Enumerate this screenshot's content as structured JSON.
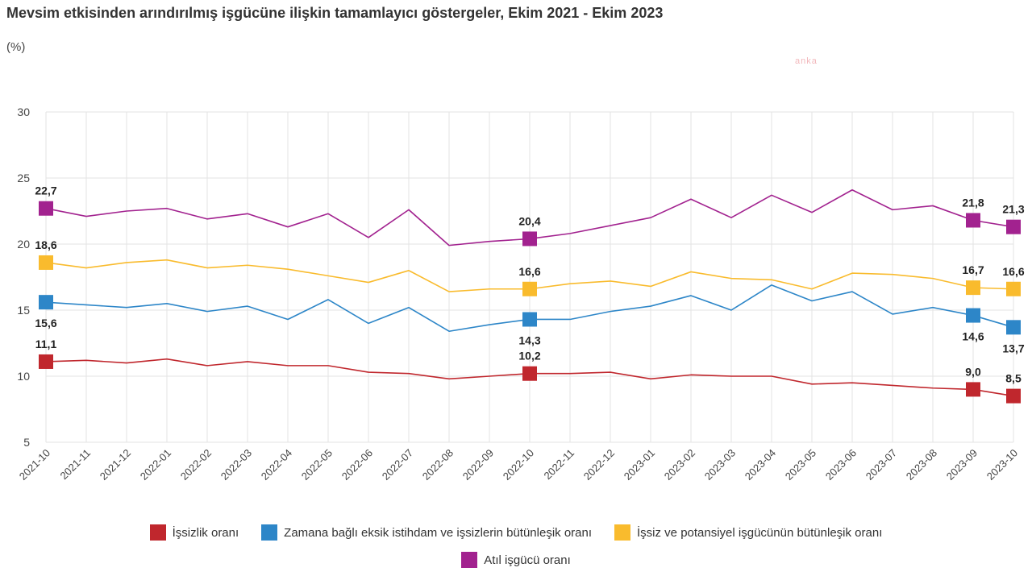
{
  "title": "Mevsim etkisinden arındırılmış işgücüne ilişkin tamamlayıcı göstergeler, Ekim 2021 - Ekim 2023",
  "unit": "(%)",
  "watermark": "anka",
  "chart_data": {
    "type": "line",
    "categories": [
      "2021-10",
      "2021-11",
      "2021-12",
      "2022-01",
      "2022-02",
      "2022-03",
      "2022-04",
      "2022-05",
      "2022-06",
      "2022-07",
      "2022-08",
      "2022-09",
      "2022-10",
      "2022-11",
      "2022-12",
      "2023-01",
      "2023-02",
      "2023-03",
      "2023-04",
      "2023-05",
      "2023-06",
      "2023-07",
      "2023-08",
      "2023-09",
      "2023-10"
    ],
    "ylim": [
      5,
      30
    ],
    "yticks": [
      5,
      10,
      15,
      20,
      25,
      30
    ],
    "grid": true,
    "legend_position": "bottom",
    "series": [
      {
        "name": "İşsizlik oranı",
        "color": "#c0272d",
        "values": [
          11.1,
          11.2,
          11.0,
          11.3,
          10.8,
          11.1,
          10.8,
          10.8,
          10.3,
          10.2,
          9.8,
          10.0,
          10.2,
          10.2,
          10.3,
          9.8,
          10.1,
          10.0,
          10.0,
          9.4,
          9.5,
          9.3,
          9.1,
          9.0,
          8.5
        ],
        "marked": [
          0,
          12,
          23,
          24
        ],
        "label_pos": "above"
      },
      {
        "name": "Zamana bağlı eksik istihdam ve işsizlerin bütünleşik oranı",
        "color": "#2d86c8",
        "values": [
          15.6,
          15.4,
          15.2,
          15.5,
          14.9,
          15.3,
          14.3,
          15.8,
          14.0,
          15.2,
          13.4,
          13.9,
          14.3,
          14.3,
          14.9,
          15.3,
          16.1,
          15.0,
          16.9,
          15.7,
          16.4,
          14.7,
          15.2,
          14.6,
          13.7
        ],
        "marked": [
          0,
          12,
          23,
          24
        ],
        "label_pos": "below"
      },
      {
        "name": "İşsiz ve potansiyel işgücünün bütünleşik oranı",
        "color": "#f9bb2d",
        "values": [
          18.6,
          18.2,
          18.6,
          18.8,
          18.2,
          18.4,
          18.1,
          17.6,
          17.1,
          18.0,
          16.4,
          16.6,
          16.6,
          17.0,
          17.2,
          16.8,
          17.9,
          17.4,
          17.3,
          16.6,
          17.8,
          17.7,
          17.4,
          16.7,
          16.6
        ],
        "marked": [
          0,
          12,
          23,
          24
        ],
        "label_pos": "above"
      },
      {
        "name": "Atıl işgücü oranı",
        "color": "#a2228f",
        "values": [
          22.7,
          22.1,
          22.5,
          22.7,
          21.9,
          22.3,
          21.3,
          22.3,
          20.5,
          22.6,
          19.9,
          20.2,
          20.4,
          20.8,
          21.4,
          22.0,
          23.4,
          22.0,
          23.7,
          22.4,
          24.1,
          22.6,
          22.9,
          21.8,
          21.3
        ],
        "marked": [
          0,
          12,
          23,
          24
        ],
        "label_pos": "above"
      }
    ],
    "data_labels": [
      {
        "series": 0,
        "index": 0,
        "text": "11,1"
      },
      {
        "series": 0,
        "index": 12,
        "text": "10,2"
      },
      {
        "series": 0,
        "index": 23,
        "text": "9,0"
      },
      {
        "series": 0,
        "index": 24,
        "text": "8,5"
      },
      {
        "series": 1,
        "index": 0,
        "text": "15,6"
      },
      {
        "series": 1,
        "index": 12,
        "text": "14,3"
      },
      {
        "series": 1,
        "index": 23,
        "text": "14,6"
      },
      {
        "series": 1,
        "index": 24,
        "text": "13,7"
      },
      {
        "series": 2,
        "index": 0,
        "text": "18,6"
      },
      {
        "series": 2,
        "index": 12,
        "text": "16,6"
      },
      {
        "series": 2,
        "index": 23,
        "text": "16,7"
      },
      {
        "series": 2,
        "index": 24,
        "text": "16,6"
      },
      {
        "series": 3,
        "index": 0,
        "text": "22,7"
      },
      {
        "series": 3,
        "index": 12,
        "text": "20,4"
      },
      {
        "series": 3,
        "index": 23,
        "text": "21,8"
      },
      {
        "series": 3,
        "index": 24,
        "text": "21,3"
      }
    ]
  },
  "legend": {
    "row1": [
      {
        "label": "İşsizlik oranı",
        "color": "#c0272d"
      },
      {
        "label": "Zamana bağlı eksik istihdam ve işsizlerin bütünleşik oranı",
        "color": "#2d86c8"
      },
      {
        "label": "İşsiz ve potansiyel işgücünün bütünleşik oranı",
        "color": "#f9bb2d"
      }
    ],
    "row2": [
      {
        "label": "Atıl işgücü oranı",
        "color": "#a2228f"
      }
    ]
  }
}
